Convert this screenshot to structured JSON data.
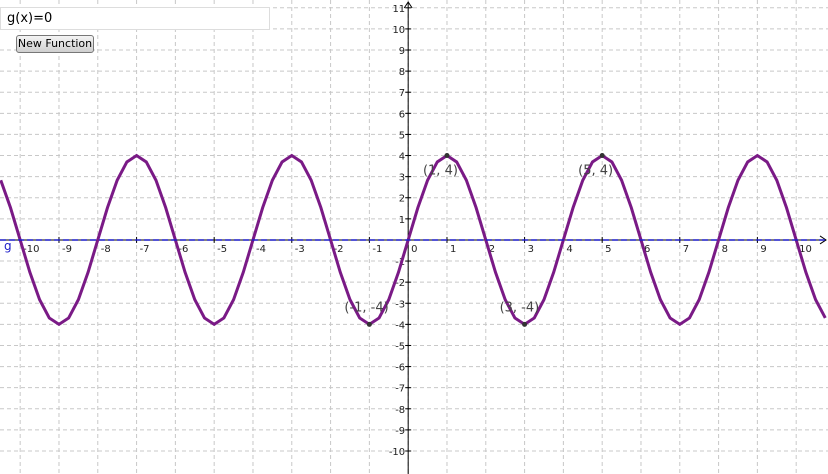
{
  "ui": {
    "input": "g(x)=0",
    "button": "New Function"
  },
  "chart_data": {
    "type": "line",
    "xlim": [
      -10.52,
      10.82
    ],
    "ylim": [
      -11.09,
      11.37
    ],
    "xticks": [
      -10,
      -9,
      -8,
      -7,
      -6,
      -5,
      -4,
      -3,
      -2,
      -1,
      0,
      1,
      2,
      3,
      4,
      5,
      6,
      7,
      8,
      9,
      10
    ],
    "yticks": [
      -10,
      -9,
      -8,
      -7,
      -6,
      -5,
      -4,
      -3,
      -2,
      -1,
      1,
      2,
      3,
      4,
      5,
      6,
      7,
      8,
      9,
      10,
      11
    ],
    "grid": true,
    "series": [
      {
        "color": "#7a1a86",
        "x": [
          -10.5,
          -10.25,
          -10,
          -9.75,
          -9.5,
          -9.25,
          -9,
          -8.75,
          -8.5,
          -8.25,
          -8,
          -7.75,
          -7.5,
          -7.25,
          -7,
          -6.75,
          -6.5,
          -6.25,
          -6,
          -5.75,
          -5.5,
          -5.25,
          -5,
          -4.75,
          -4.5,
          -4.25,
          -4,
          -3.75,
          -3.5,
          -3.25,
          -3,
          -2.75,
          -2.5,
          -2.25,
          -2,
          -1.75,
          -1.5,
          -1.25,
          -1,
          -0.75,
          -0.5,
          -0.25,
          0,
          0.25,
          0.5,
          0.75,
          1,
          1.25,
          1.5,
          1.75,
          2,
          2.25,
          2.5,
          2.75,
          3,
          3.25,
          3.5,
          3.75,
          4,
          4.25,
          4.5,
          4.75,
          5,
          5.25,
          5.5,
          5.75,
          6,
          6.25,
          6.5,
          6.75,
          7,
          7.25,
          7.5,
          7.75,
          8,
          8.25,
          8.5,
          8.75,
          9,
          9.25,
          9.5,
          9.75,
          10,
          10.25,
          10.5,
          10.75
        ],
        "values": [
          2.828,
          1.531,
          0,
          -1.531,
          -2.828,
          -3.696,
          -4,
          -3.696,
          -2.828,
          -1.531,
          0,
          1.531,
          2.828,
          3.696,
          4,
          3.696,
          2.828,
          1.531,
          0,
          -1.531,
          -2.828,
          -3.696,
          -4,
          -3.696,
          -2.828,
          -1.531,
          0,
          1.531,
          2.828,
          3.696,
          4,
          3.696,
          2.828,
          1.531,
          0,
          -1.531,
          -2.828,
          -3.696,
          -4,
          -3.696,
          -2.828,
          -1.531,
          0,
          1.531,
          2.828,
          3.696,
          4,
          3.696,
          2.828,
          1.531,
          0,
          -1.531,
          -2.828,
          -3.696,
          -4,
          -3.696,
          -2.828,
          -1.531,
          0,
          1.531,
          2.828,
          3.696,
          4,
          3.696,
          2.828,
          1.531,
          0,
          -1.531,
          -2.828,
          -3.696,
          -4,
          -3.696,
          -2.828,
          -1.531,
          0,
          1.531,
          2.828,
          3.696,
          4,
          3.696,
          2.828,
          1.531,
          0,
          -1.531,
          -2.828,
          -3.696
        ]
      },
      {
        "name": "g",
        "color": "#1c1cc8",
        "x": [
          -10.52,
          10.82
        ],
        "values": [
          0,
          0
        ]
      }
    ],
    "points": [
      {
        "x": 1,
        "y": 4,
        "label": "(1, 4)"
      },
      {
        "x": 5,
        "y": 4,
        "label": "(5, 4)"
      },
      {
        "x": -1,
        "y": -4,
        "label": "(-1, -4)"
      },
      {
        "x": 3,
        "y": -4,
        "label": "(3, -4)"
      }
    ]
  }
}
